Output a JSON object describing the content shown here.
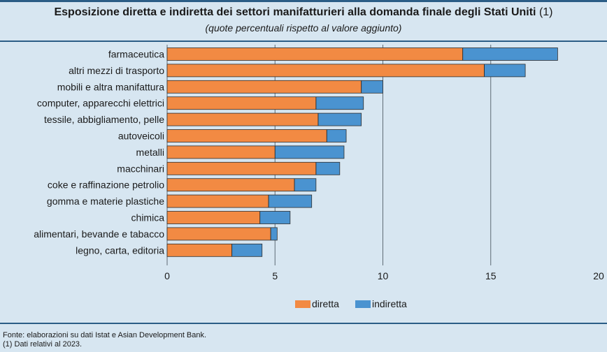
{
  "header": {
    "title": "Esposizione diretta e indiretta dei settori manifatturieri alla domanda finale degli Stati Uniti",
    "title_note": "(1)",
    "subtitle": "(quote percentuali rispetto al valore aggiunto)"
  },
  "footer": {
    "source": "Fonte: elaborazioni su dati Istat e Asian Development Bank.",
    "note": "(1) Dati relativi al 2023."
  },
  "colors": {
    "diretta": "#f28a43",
    "indiretta": "#4a93d0",
    "gridline": "#5f6b75",
    "bar_border": "#2f2f2f"
  },
  "chart_data": {
    "type": "bar",
    "orientation": "horizontal",
    "stacked": true,
    "categories": [
      "farmaceutica",
      "altri mezzi di trasporto",
      "mobili e altra manifattura",
      "computer, apparecchi elettrici",
      "tessile, abbigliamento, pelle",
      "autoveicoli",
      "metalli",
      "macchinari",
      "coke e raffinazione petrolio",
      "gomma e materie plastiche",
      "chimica",
      "alimentari, bevande e tabacco",
      "legno, carta, editoria"
    ],
    "series": [
      {
        "name": "diretta",
        "values": [
          13.7,
          14.7,
          9.0,
          6.9,
          7.0,
          7.4,
          5.0,
          6.9,
          5.9,
          4.7,
          4.3,
          4.8,
          3.0
        ]
      },
      {
        "name": "indiretta",
        "values": [
          4.4,
          1.9,
          1.0,
          2.2,
          2.0,
          0.9,
          3.2,
          1.1,
          1.0,
          2.0,
          1.4,
          0.3,
          1.4
        ]
      }
    ],
    "xlim": [
      0,
      20
    ],
    "xticks": [
      0,
      5,
      10,
      15,
      20
    ],
    "xtick_labels": [
      "0",
      "5",
      "10",
      "15",
      "20"
    ],
    "gridlines": [
      5,
      10,
      15
    ],
    "legend": [
      "diretta",
      "indiretta"
    ],
    "legend_position": "bottom-center"
  }
}
